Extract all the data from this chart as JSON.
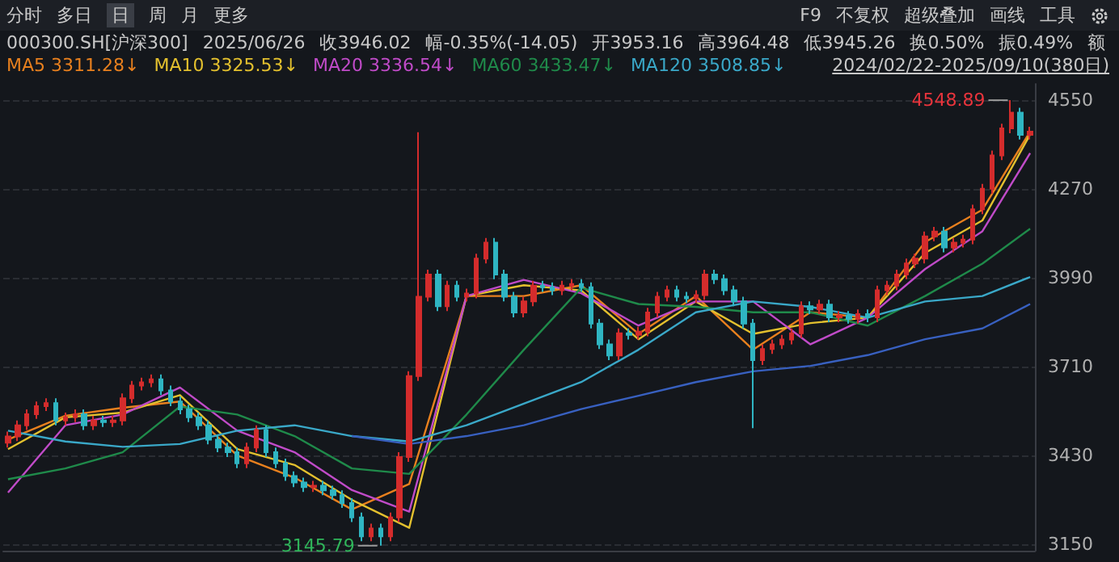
{
  "chart_data": {
    "type": "candlestick",
    "title": "000300.SH[沪深300]",
    "annotations": [
      "分时",
      "多日",
      "日",
      "周",
      "月",
      "更多",
      "F9",
      "不复权",
      "超级叠加",
      "画线",
      "工具",
      "2025/06/26",
      "收3946.02",
      "幅-0.35%(-14.05)",
      "开3953.16",
      "高3964.48",
      "低3945.26",
      "换0.50%",
      "振0.49%",
      "额",
      "3311.28↓",
      "3325.53↓",
      "3336.54↓",
      "3433.47↓",
      "3508.85↓",
      "2024/02/22-2025/09/10(380日)",
      "4548.89",
      "3145.79"
    ],
    "categories": [
      null,
      null,
      null,
      null,
      null,
      null,
      null,
      null,
      null,
      null,
      null,
      null,
      null,
      null,
      null,
      null,
      null,
      null,
      null,
      null,
      null,
      null,
      null,
      null,
      null,
      null,
      null,
      null,
      null,
      null,
      null,
      null,
      null,
      null,
      null,
      null,
      null,
      null,
      null,
      null,
      null,
      null,
      null,
      null,
      null,
      null,
      null,
      null,
      null,
      null,
      null,
      null,
      null,
      null,
      null,
      null,
      null,
      null,
      null,
      null,
      null,
      null,
      null,
      null,
      null,
      null,
      null,
      null,
      null,
      null,
      null,
      null,
      null,
      null,
      null,
      null,
      null,
      null,
      null,
      null,
      null,
      null,
      null,
      null,
      null,
      null,
      null,
      null,
      null,
      null,
      null,
      null,
      null,
      null,
      null,
      null,
      null,
      null,
      null,
      null,
      null,
      null,
      null,
      null,
      null,
      null,
      null,
      null
    ],
    "ohlc": [
      [
        3470,
        3505,
        3455,
        3490
      ],
      [
        3490,
        3540,
        3475,
        3525
      ],
      [
        3525,
        3575,
        3510,
        3560
      ],
      [
        3560,
        3600,
        3545,
        3585
      ],
      [
        3585,
        3610,
        3570,
        3595
      ],
      [
        3595,
        3610,
        3525,
        3540
      ],
      [
        3540,
        3565,
        3525,
        3550
      ],
      [
        3550,
        3575,
        3535,
        3560
      ],
      [
        3560,
        3575,
        3510,
        3525
      ],
      [
        3525,
        3555,
        3510,
        3540
      ],
      [
        3540,
        3555,
        3520,
        3535
      ],
      [
        3535,
        3555,
        3520,
        3540
      ],
      [
        3540,
        3625,
        3525,
        3610
      ],
      [
        3610,
        3665,
        3595,
        3650
      ],
      [
        3650,
        3675,
        3635,
        3660
      ],
      [
        3660,
        3685,
        3645,
        3670
      ],
      [
        3670,
        3685,
        3620,
        3635
      ],
      [
        3635,
        3650,
        3585,
        3600
      ],
      [
        3600,
        3615,
        3560,
        3575
      ],
      [
        3575,
        3590,
        3535,
        3550
      ],
      [
        3550,
        3565,
        3510,
        3525
      ],
      [
        3525,
        3540,
        3465,
        3480
      ],
      [
        3480,
        3495,
        3440,
        3455
      ],
      [
        3455,
        3470,
        3425,
        3440
      ],
      [
        3440,
        3455,
        3390,
        3405
      ],
      [
        3405,
        3470,
        3390,
        3455
      ],
      [
        3455,
        3525,
        3440,
        3510
      ],
      [
        3510,
        3525,
        3425,
        3440
      ],
      [
        3440,
        3455,
        3390,
        3405
      ],
      [
        3405,
        3420,
        3350,
        3365
      ],
      [
        3365,
        3380,
        3330,
        3345
      ],
      [
        3345,
        3360,
        3315,
        3330
      ],
      [
        3330,
        3350,
        3315,
        3335
      ],
      [
        3335,
        3350,
        3305,
        3320
      ],
      [
        3320,
        3335,
        3290,
        3305
      ],
      [
        3305,
        3320,
        3265,
        3280
      ],
      [
        3280,
        3295,
        3220,
        3235
      ],
      [
        3235,
        3250,
        3160,
        3175
      ],
      [
        3175,
        3215,
        3160,
        3200
      ],
      [
        3200,
        3215,
        3145.79,
        3175
      ],
      [
        3175,
        3250,
        3160,
        3235
      ],
      [
        3235,
        3440,
        3220,
        3425
      ],
      [
        3425,
        3695,
        3410,
        3680
      ],
      [
        3680,
        4448,
        3665,
        3930
      ],
      [
        3930,
        4015,
        3915,
        4000
      ],
      [
        4000,
        4015,
        3885,
        3900
      ],
      [
        3900,
        3980,
        3885,
        3965
      ],
      [
        3965,
        3980,
        3915,
        3930
      ],
      [
        3930,
        3955,
        3915,
        3940
      ],
      [
        3940,
        4065,
        3925,
        4050
      ],
      [
        4050,
        4115,
        4035,
        4100
      ],
      [
        4100,
        4115,
        3985,
        4000
      ],
      [
        4000,
        4015,
        3915,
        3930
      ],
      [
        3930,
        3945,
        3865,
        3880
      ],
      [
        3880,
        3930,
        3865,
        3915
      ],
      [
        3915,
        3980,
        3900,
        3965
      ],
      [
        3965,
        3980,
        3945,
        3960
      ],
      [
        3960,
        3975,
        3935,
        3950
      ],
      [
        3950,
        3980,
        3935,
        3965
      ],
      [
        3965,
        3985,
        3950,
        3970
      ],
      [
        3970,
        3985,
        3945,
        3960
      ],
      [
        3960,
        3975,
        3830,
        3845
      ],
      [
        3845,
        3860,
        3765,
        3780
      ],
      [
        3780,
        3795,
        3730,
        3745
      ],
      [
        3745,
        3830,
        3730,
        3815
      ],
      [
        3815,
        3830,
        3795,
        3810
      ],
      [
        3810,
        3835,
        3795,
        3820
      ],
      [
        3820,
        3895,
        3805,
        3880
      ],
      [
        3880,
        3945,
        3865,
        3930
      ],
      [
        3930,
        3965,
        3915,
        3950
      ],
      [
        3950,
        3965,
        3915,
        3930
      ],
      [
        3930,
        3945,
        3910,
        3925
      ],
      [
        3925,
        3950,
        3910,
        3935
      ],
      [
        3935,
        4015,
        3920,
        4000
      ],
      [
        4000,
        4015,
        3970,
        3985
      ],
      [
        3985,
        4000,
        3935,
        3950
      ],
      [
        3950,
        3965,
        3900,
        3915
      ],
      [
        3915,
        3930,
        3830,
        3845
      ],
      [
        3845,
        3860,
        3516,
        3730
      ],
      [
        3730,
        3780,
        3715,
        3765
      ],
      [
        3765,
        3795,
        3750,
        3780
      ],
      [
        3780,
        3810,
        3765,
        3795
      ],
      [
        3795,
        3830,
        3780,
        3815
      ],
      [
        3815,
        3915,
        3800,
        3900
      ],
      [
        3900,
        3915,
        3875,
        3890
      ],
      [
        3890,
        3920,
        3875,
        3905
      ],
      [
        3905,
        3920,
        3850,
        3865
      ],
      [
        3865,
        3885,
        3850,
        3870
      ],
      [
        3870,
        3885,
        3845,
        3860
      ],
      [
        3860,
        3890,
        3845,
        3875
      ],
      [
        3875,
        3890,
        3850,
        3865
      ],
      [
        3865,
        3965,
        3850,
        3950
      ],
      [
        3950,
        3980,
        3935,
        3965
      ],
      [
        3965,
        4015,
        3950,
        4000
      ],
      [
        4000,
        4050,
        3985,
        4035
      ],
      [
        4035,
        4065,
        4020,
        4050
      ],
      [
        4050,
        4135,
        4035,
        4120
      ],
      [
        4120,
        4150,
        4105,
        4135
      ],
      [
        4135,
        4150,
        4070,
        4085
      ],
      [
        4085,
        4115,
        4070,
        4100
      ],
      [
        4100,
        4125,
        4085,
        4110
      ],
      [
        4110,
        4220,
        4095,
        4205
      ],
      [
        4205,
        4285,
        4190,
        4270
      ],
      [
        4270,
        4390,
        4255,
        4375
      ],
      [
        4375,
        4475,
        4360,
        4460
      ],
      [
        4460,
        4548.89,
        4445,
        4510
      ],
      [
        4510,
        4525,
        4425,
        4440
      ],
      [
        4440,
        4465,
        4425,
        4450
      ]
    ],
    "colors": [
      "#d42c2c",
      "#d42c2c",
      "#d42c2c",
      "#d42c2c",
      "#d42c2c",
      "#2fb5c2",
      "#d42c2c",
      "#d42c2c",
      "#2fb5c2",
      "#d42c2c",
      "#2fb5c2",
      "#d42c2c",
      "#d42c2c",
      "#d42c2c",
      "#d42c2c",
      "#d42c2c",
      "#2fb5c2",
      "#2fb5c2",
      "#2fb5c2",
      "#2fb5c2",
      "#2fb5c2",
      "#2fb5c2",
      "#2fb5c2",
      "#2fb5c2",
      "#2fb5c2",
      "#d42c2c",
      "#d42c2c",
      "#2fb5c2",
      "#2fb5c2",
      "#2fb5c2",
      "#2fb5c2",
      "#2fb5c2",
      "#d42c2c",
      "#2fb5c2",
      "#2fb5c2",
      "#2fb5c2",
      "#2fb5c2",
      "#2fb5c2",
      "#d42c2c",
      "#2fb5c2",
      "#d42c2c",
      "#d42c2c",
      "#d42c2c",
      "#d42c2c",
      "#d42c2c",
      "#2fb5c2",
      "#d42c2c",
      "#2fb5c2",
      "#d42c2c",
      "#d42c2c",
      "#d42c2c",
      "#2fb5c2",
      "#2fb5c2",
      "#2fb5c2",
      "#d42c2c",
      "#d42c2c",
      "#2fb5c2",
      "#2fb5c2",
      "#d42c2c",
      "#d42c2c",
      "#2fb5c2",
      "#2fb5c2",
      "#2fb5c2",
      "#2fb5c2",
      "#d42c2c",
      "#2fb5c2",
      "#d42c2c",
      "#d42c2c",
      "#d42c2c",
      "#d42c2c",
      "#2fb5c2",
      "#2fb5c2",
      "#d42c2c",
      "#d42c2c",
      "#2fb5c2",
      "#2fb5c2",
      "#2fb5c2",
      "#2fb5c2",
      "#2fb5c2",
      "#d42c2c",
      "#d42c2c",
      "#d42c2c",
      "#d42c2c",
      "#d42c2c",
      "#2fb5c2",
      "#d42c2c",
      "#2fb5c2",
      "#d42c2c",
      "#2fb5c2",
      "#d42c2c",
      "#2fb5c2",
      "#d42c2c",
      "#d42c2c",
      "#d42c2c",
      "#d42c2c",
      "#d42c2c",
      "#d42c2c",
      "#d42c2c",
      "#2fb5c2",
      "#d42c2c",
      "#d42c2c",
      "#d42c2c",
      "#d42c2c",
      "#d42c2c",
      "#d42c2c",
      "#d42c2c",
      "#2fb5c2",
      "#d42c2c"
    ],
    "series": [
      {
        "type": "line",
        "name": "MA5",
        "color": "#e8801e",
        "values": [
          3480,
          null,
          null,
          null,
          null,
          null,
          3555,
          null,
          null,
          null,
          null,
          null,
          3580,
          null,
          null,
          null,
          null,
          null,
          3600,
          null,
          null,
          null,
          null,
          null,
          3430,
          null,
          null,
          null,
          null,
          null,
          3360,
          null,
          null,
          null,
          null,
          null,
          3260,
          null,
          null,
          null,
          null,
          null,
          3340,
          null,
          null,
          null,
          null,
          null,
          3932,
          null,
          null,
          null,
          null,
          null,
          3932,
          null,
          null,
          null,
          null,
          null,
          3966,
          null,
          null,
          null,
          null,
          null,
          3813,
          null,
          null,
          null,
          null,
          null,
          3932,
          null,
          null,
          null,
          null,
          null,
          3763,
          null,
          null,
          null,
          null,
          null,
          3881,
          null,
          null,
          null,
          null,
          null,
          3864,
          null,
          null,
          null,
          null,
          null,
          4102,
          null,
          null,
          null,
          null,
          null,
          4204,
          null,
          null,
          null,
          null,
          4450
        ]
      },
      {
        "type": "line",
        "name": "MA10",
        "color": "#e3c02e",
        "values": [
          3450,
          null,
          null,
          null,
          null,
          null,
          3550,
          null,
          null,
          null,
          null,
          null,
          3565,
          null,
          null,
          null,
          null,
          null,
          3620,
          null,
          null,
          null,
          null,
          null,
          3450,
          null,
          null,
          null,
          null,
          null,
          3400,
          null,
          null,
          null,
          null,
          null,
          3290,
          null,
          null,
          null,
          null,
          null,
          3202,
          null,
          null,
          null,
          null,
          null,
          3932,
          null,
          null,
          null,
          null,
          null,
          3966,
          null,
          null,
          null,
          null,
          null,
          3950,
          null,
          null,
          null,
          null,
          null,
          3796,
          null,
          null,
          null,
          null,
          null,
          3915,
          null,
          null,
          null,
          null,
          null,
          3813,
          null,
          null,
          null,
          null,
          null,
          3847,
          null,
          null,
          null,
          null,
          null,
          3864,
          null,
          null,
          null,
          null,
          null,
          4068,
          null,
          null,
          null,
          null,
          null,
          4170,
          null,
          null,
          null,
          null,
          4441
        ]
      },
      {
        "type": "line",
        "name": "MA20",
        "color": "#c04bc8",
        "values": [
          3313,
          null,
          null,
          null,
          null,
          null,
          3525,
          null,
          null,
          null,
          null,
          null,
          3559,
          null,
          null,
          null,
          null,
          null,
          3644,
          null,
          null,
          null,
          null,
          null,
          3508,
          null,
          null,
          null,
          null,
          null,
          3440,
          null,
          null,
          null,
          null,
          null,
          3321,
          null,
          null,
          null,
          null,
          null,
          3253,
          null,
          null,
          null,
          null,
          null,
          3932,
          null,
          null,
          null,
          null,
          null,
          3983,
          null,
          null,
          null,
          null,
          null,
          3941,
          null,
          null,
          null,
          null,
          null,
          3839,
          null,
          null,
          null,
          null,
          null,
          3915,
          null,
          null,
          null,
          null,
          null,
          3915,
          null,
          null,
          null,
          null,
          null,
          3780,
          null,
          null,
          null,
          null,
          null,
          3864,
          null,
          null,
          null,
          null,
          null,
          4017,
          null,
          null,
          null,
          null,
          null,
          4136,
          null,
          null,
          null,
          null,
          4382
        ]
      },
      {
        "type": "line",
        "name": "MA60",
        "color": "#1f8a4a",
        "values": [
          3355,
          null,
          null,
          null,
          null,
          null,
          3389,
          null,
          null,
          null,
          null,
          null,
          3440,
          null,
          null,
          null,
          null,
          null,
          3584,
          null,
          null,
          null,
          null,
          null,
          3559,
          null,
          null,
          null,
          null,
          null,
          3491,
          null,
          null,
          null,
          null,
          null,
          3389,
          null,
          null,
          null,
          null,
          null,
          3372,
          null,
          null,
          null,
          null,
          null,
          3559,
          null,
          null,
          null,
          null,
          null,
          3763,
          null,
          null,
          null,
          null,
          null,
          3958,
          null,
          null,
          null,
          null,
          null,
          3907,
          null,
          null,
          null,
          null,
          null,
          3898,
          null,
          null,
          null,
          null,
          null,
          3881,
          null,
          null,
          null,
          null,
          null,
          3881,
          null,
          null,
          null,
          null,
          null,
          3839,
          null,
          null,
          null,
          null,
          null,
          3932,
          null,
          null,
          null,
          null,
          null,
          4034,
          null,
          null,
          null,
          null,
          4144
        ]
      },
      {
        "type": "line",
        "name": "MA120",
        "color": "#3aa8c8",
        "values": [
          3508,
          null,
          null,
          null,
          null,
          null,
          3474,
          null,
          null,
          null,
          null,
          null,
          3457,
          null,
          null,
          null,
          null,
          null,
          3466,
          null,
          null,
          null,
          null,
          null,
          3508,
          null,
          null,
          null,
          null,
          null,
          3525,
          null,
          null,
          null,
          null,
          null,
          3491,
          null,
          null,
          null,
          null,
          null,
          3474,
          null,
          null,
          null,
          null,
          null,
          3525,
          null,
          null,
          null,
          null,
          null,
          3593,
          null,
          null,
          null,
          null,
          null,
          3661,
          null,
          null,
          null,
          null,
          null,
          3763,
          null,
          null,
          null,
          null,
          null,
          3881,
          null,
          null,
          null,
          null,
          null,
          3915,
          null,
          null,
          null,
          null,
          null,
          3898,
          null,
          null,
          null,
          null,
          null,
          3864,
          null,
          null,
          null,
          null,
          null,
          3915,
          null,
          null,
          null,
          null,
          null,
          3932,
          null,
          null,
          null,
          null,
          3992
        ]
      },
      {
        "type": "line",
        "color": "#3860c0",
        "values": [
          null,
          null,
          null,
          null,
          null,
          null,
          null,
          null,
          null,
          null,
          null,
          null,
          null,
          null,
          null,
          null,
          null,
          null,
          null,
          null,
          null,
          null,
          null,
          null,
          null,
          null,
          null,
          null,
          null,
          null,
          null,
          null,
          null,
          null,
          null,
          null,
          3491,
          null,
          null,
          null,
          null,
          null,
          3466,
          null,
          null,
          null,
          null,
          null,
          3491,
          null,
          null,
          null,
          null,
          null,
          3525,
          null,
          null,
          null,
          null,
          null,
          3576,
          null,
          null,
          null,
          null,
          null,
          3618,
          null,
          null,
          null,
          null,
          null,
          3661,
          null,
          null,
          null,
          null,
          null,
          3695,
          null,
          null,
          null,
          null,
          null,
          3712,
          null,
          null,
          null,
          null,
          null,
          3746,
          null,
          null,
          null,
          null,
          null,
          3796,
          null,
          null,
          null,
          null,
          null,
          3830,
          null,
          null,
          null,
          null,
          3907
        ]
      }
    ],
    "ylim": [
      3130,
      4600
    ],
    "yticks": [
      3150,
      3430,
      3710,
      3990,
      4270,
      4550
    ],
    "grid": "y",
    "legend": "top left",
    "tick_labels": "y"
  }
}
